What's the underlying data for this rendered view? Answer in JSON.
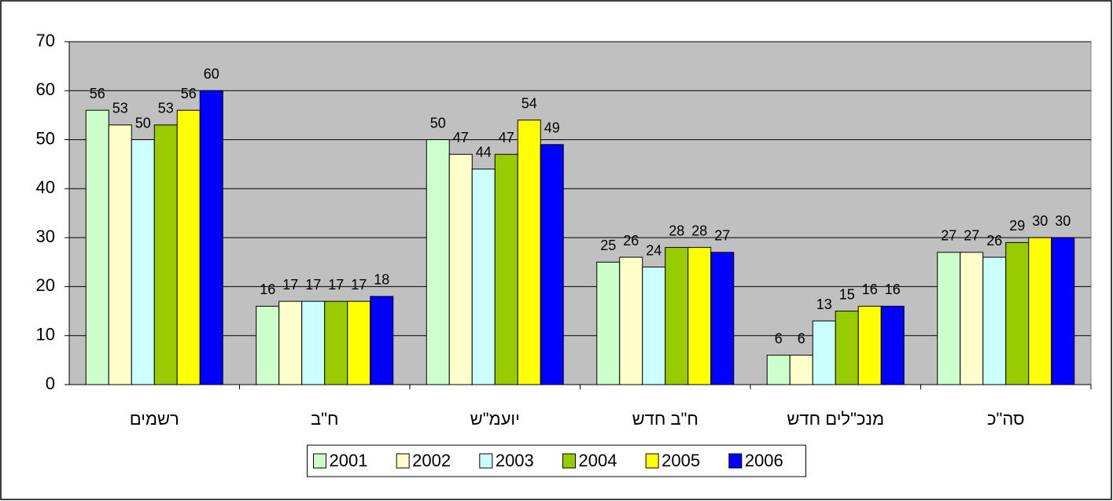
{
  "chart_data": {
    "type": "bar",
    "categories": [
      "רשמים",
      "ח\"ב",
      "יועמ\"ש",
      "ח\"ב חדש",
      "מנכ\"לים חדש",
      "סה\"כ"
    ],
    "series": [
      {
        "name": "2001",
        "color": "#ccffcc",
        "values": [
          56,
          16,
          50,
          25,
          6,
          27
        ]
      },
      {
        "name": "2002",
        "color": "#ffffcc",
        "values": [
          53,
          17,
          47,
          26,
          6,
          27
        ]
      },
      {
        "name": "2003",
        "color": "#ccffff",
        "values": [
          50,
          17,
          44,
          24,
          13,
          26
        ]
      },
      {
        "name": "2004",
        "color": "#99cc00",
        "values": [
          53,
          17,
          47,
          28,
          15,
          29
        ]
      },
      {
        "name": "2005",
        "color": "#ffff00",
        "values": [
          56,
          17,
          54,
          28,
          16,
          30
        ]
      },
      {
        "name": "2006",
        "color": "#0000ff",
        "values": [
          60,
          18,
          49,
          27,
          16,
          30
        ]
      }
    ],
    "ylim": [
      0,
      70
    ],
    "yticks": [
      0,
      10,
      20,
      30,
      40,
      50,
      60,
      70
    ],
    "grid": true,
    "legend": "bottom"
  }
}
